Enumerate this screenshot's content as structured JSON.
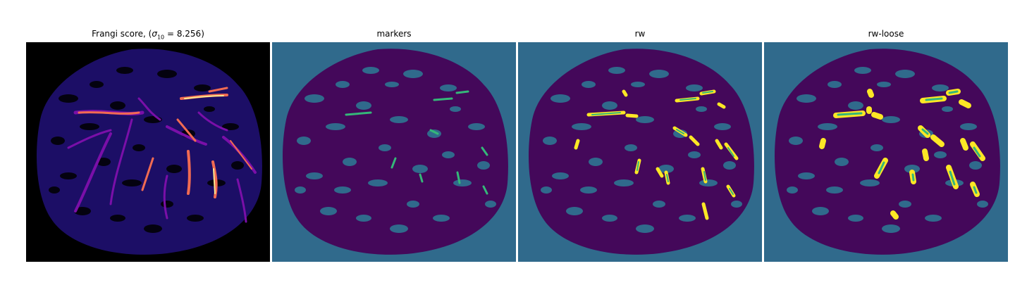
{
  "panels": [
    {
      "title_prefix": "Frangi score, (",
      "sigma_symbol": "σ",
      "sigma_sub": "10",
      "sigma_eq": " = 8.256",
      "title_suffix": ")",
      "colormap": "magma"
    },
    {
      "title": "markers",
      "colormap": "viridis"
    },
    {
      "title": "rw",
      "colormap": "viridis"
    },
    {
      "title": "rw-loose",
      "colormap": "viridis"
    }
  ],
  "colors": {
    "frangi_background": "#000000",
    "frangi_texture": "#1d0f6b",
    "frangi_mid": "#7a0fa8",
    "frangi_high": "#f16b52",
    "frangi_peak": "#fde68f",
    "viridis_background": "#306a8c",
    "viridis_dark": "#44085a",
    "viridis_marker": "#35b779",
    "viridis_vessel": "#fde725"
  }
}
